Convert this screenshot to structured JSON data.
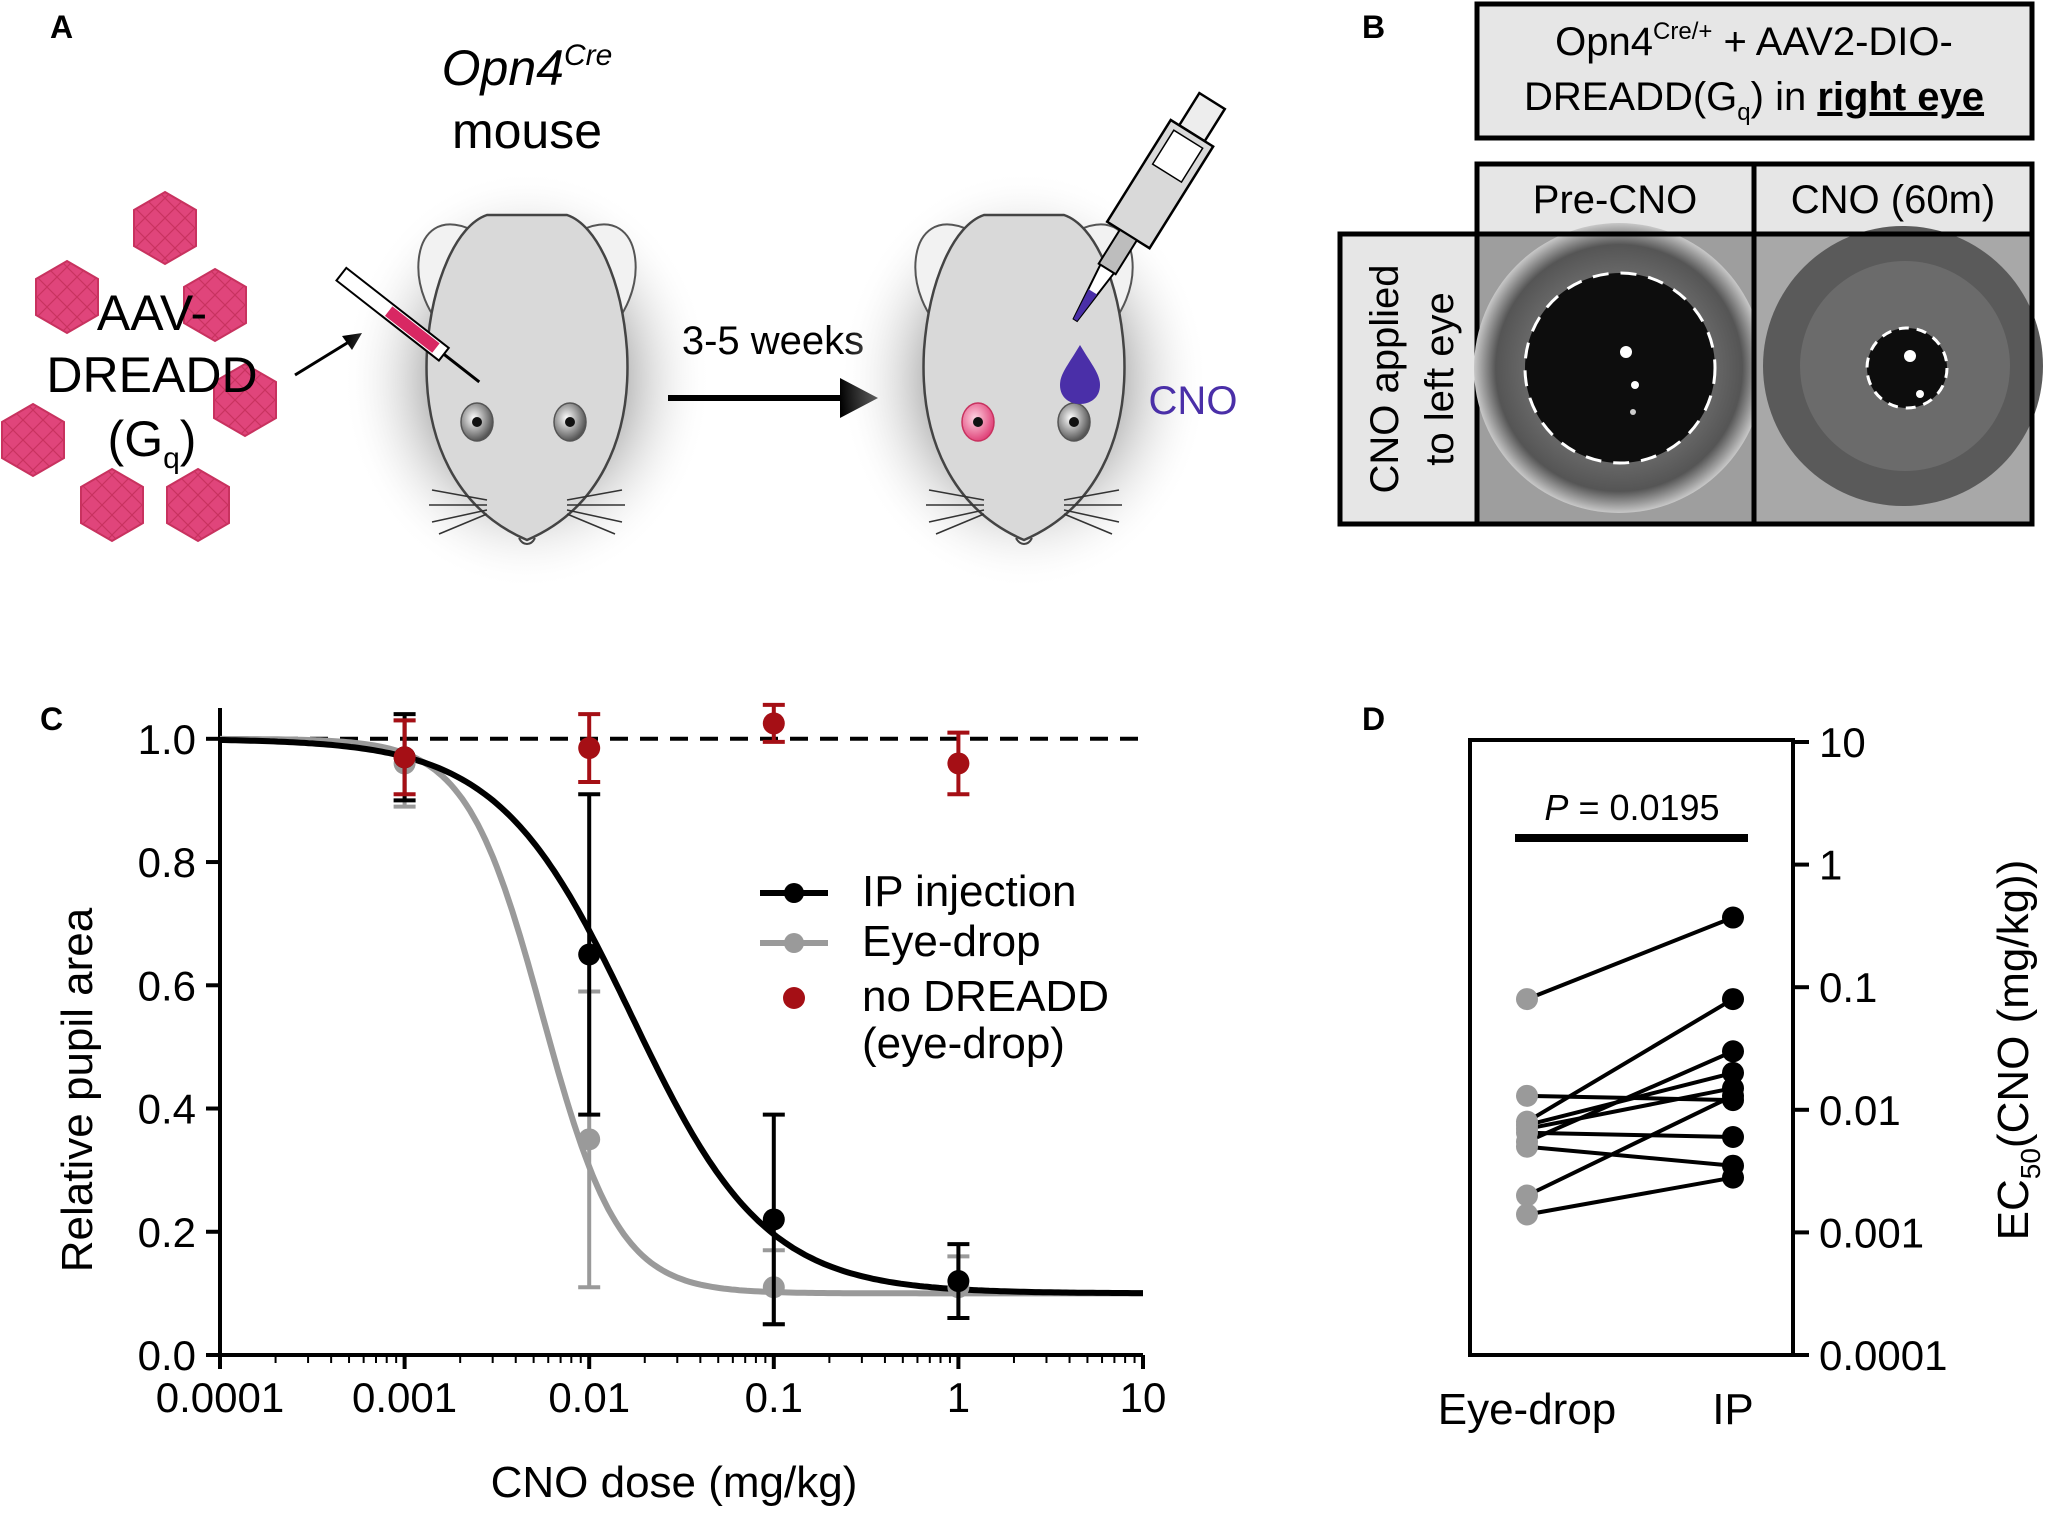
{
  "panels": {
    "a": {
      "label": "A",
      "mouse_title_italic": "Opn4",
      "mouse_title_sup": "Cre",
      "mouse_title_line2": "mouse",
      "virus_line1": "AAV-",
      "virus_line2": "DREADD",
      "virus_line3_open": "(G",
      "virus_line3_sub": "q",
      "virus_line3_close": ")",
      "interval": "3-5 weeks",
      "drug": "CNO"
    },
    "b": {
      "label": "B",
      "title_line1_a": "Opn4",
      "title_line1_sup": "Cre/+",
      "title_line1_b": " + AAV2-DIO-",
      "title_line2_a": "DREADD(G",
      "title_line2_sub": "q",
      "title_line2_b": ") in ",
      "title_line2_bold": "right eye",
      "col1": "Pre-CNO",
      "col2": "CNO (60m)",
      "row_line1": "CNO applied",
      "row_line2": "to left eye"
    },
    "c": {
      "label": "C"
    },
    "d": {
      "label": "D"
    }
  },
  "colors": {
    "ip": "#000000",
    "eyedrop": "#9a9a9a",
    "nodreadd": "#a50f15",
    "virus": "#e0457b",
    "cno": "#4a2fa8"
  },
  "chart_data": [
    {
      "panel": "C",
      "type": "line",
      "xscale": "log",
      "xlim": [
        0.0001,
        10
      ],
      "ylim": [
        0,
        1.05
      ],
      "xticks": [
        "0.0001",
        "0.001",
        "0.01",
        "0.1",
        "1",
        "10"
      ],
      "xtick_values": [
        0.0001,
        0.001,
        0.01,
        0.1,
        1,
        10
      ],
      "yticks": [
        "0.0",
        "0.2",
        "0.4",
        "0.6",
        "0.8",
        "1.0"
      ],
      "ytick_values": [
        0,
        0.2,
        0.4,
        0.6,
        0.8,
        1.0
      ],
      "xlabel": "CNO dose (mg/kg)",
      "ylabel": "Relative pupil area",
      "reference_line": 1.0,
      "legend": [
        "IP injection",
        "Eye-drop",
        "no DREADD",
        "(eye-drop)"
      ],
      "series": [
        {
          "name": "IP injection",
          "x": [
            0.001,
            0.01,
            0.1,
            1
          ],
          "y": [
            0.97,
            0.65,
            0.22,
            0.12
          ],
          "err": [
            0.07,
            0.26,
            0.17,
            0.06
          ],
          "fit": {
            "top": 1.0,
            "bottom": 0.1,
            "ec50": 0.017,
            "hill": 1.2
          }
        },
        {
          "name": "Eye-drop",
          "x": [
            0.001,
            0.01,
            0.1,
            1
          ],
          "y": [
            0.96,
            0.35,
            0.11,
            0.11
          ],
          "err": [
            0.07,
            0.24,
            0.06,
            0.05
          ],
          "fit": {
            "top": 1.0,
            "bottom": 0.1,
            "ec50": 0.0056,
            "hill": 2.1
          }
        },
        {
          "name": "no DREADD (eye-drop)",
          "x": [
            0.001,
            0.01,
            0.1,
            1
          ],
          "y": [
            0.97,
            0.985,
            1.025,
            0.96
          ],
          "err": [
            0.06,
            0.055,
            0.03,
            0.05
          ]
        }
      ]
    },
    {
      "panel": "D",
      "type": "scatter",
      "yscale": "log",
      "ylim": [
        0.0001,
        10
      ],
      "yticks": [
        "10",
        "1",
        "0.1",
        "0.01",
        "0.001",
        "0.0001"
      ],
      "ytick_values": [
        10,
        1,
        0.1,
        0.01,
        0.001,
        0.0001
      ],
      "categories": [
        "Eye-drop",
        "IP"
      ],
      "ylabel_main": "EC",
      "ylabel_sub": "50",
      "ylabel_rest": "(CNO (mg/kg))",
      "p_label": "P",
      "p_value": " = 0.0195",
      "pairs": [
        [
          0.08,
          0.37
        ],
        [
          0.013,
          0.012
        ],
        [
          0.008,
          0.08
        ],
        [
          0.0075,
          0.02
        ],
        [
          0.007,
          0.015
        ],
        [
          0.0065,
          0.006
        ],
        [
          0.0055,
          0.03
        ],
        [
          0.005,
          0.0035
        ],
        [
          0.002,
          0.013
        ],
        [
          0.0014,
          0.0028
        ]
      ]
    }
  ]
}
